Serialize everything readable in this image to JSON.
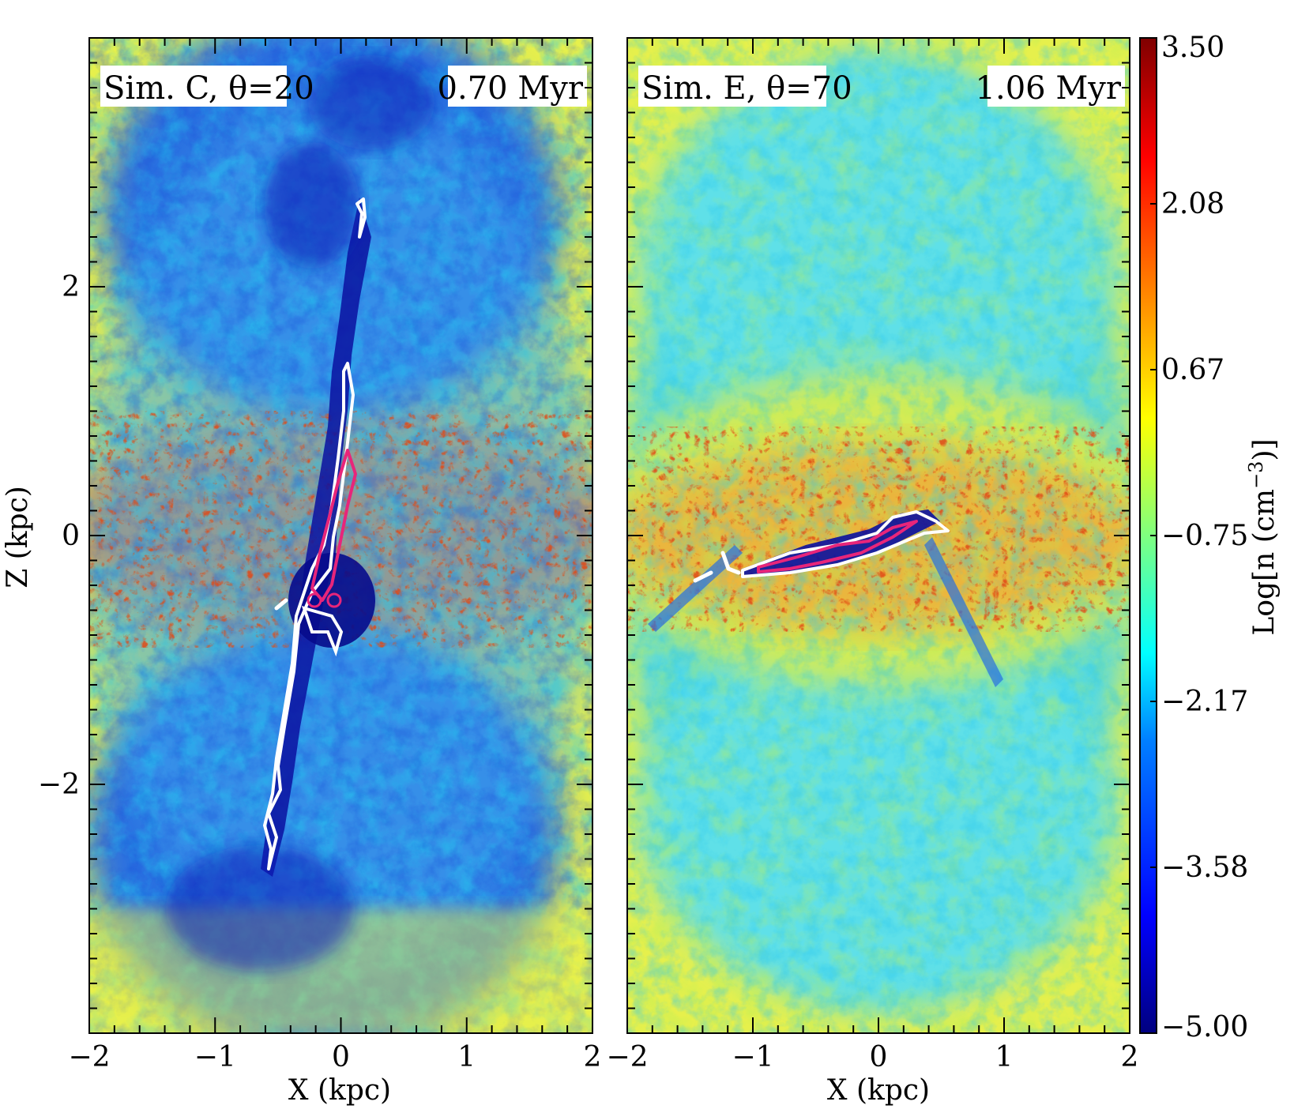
{
  "chart_data": [
    {
      "type": "heatmap",
      "panel_label": "Sim. C, θ=20",
      "time_label": "0.70 Myr",
      "xlabel": "X (kpc)",
      "ylabel": "Z (kpc)",
      "xlim": [
        -2,
        2
      ],
      "ylim": [
        -4,
        4
      ],
      "x_ticks": [
        -2,
        -1,
        0,
        1,
        2
      ],
      "x_tick_labels": [
        "−2",
        "−1",
        "0",
        "1",
        "2"
      ],
      "y_ticks": [
        2,
        0,
        -2
      ],
      "y_tick_labels": [
        "2",
        "0",
        "−2"
      ],
      "jet_angle_deg": 20,
      "jet_ends": [
        [
          0.15,
          2.7
        ],
        [
          -0.55,
          -2.7
        ]
      ]
    },
    {
      "type": "heatmap",
      "panel_label": "Sim. E, θ=70",
      "time_label": "1.06 Myr",
      "xlabel": "X (kpc)",
      "ylabel": "",
      "xlim": [
        -2,
        2
      ],
      "ylim": [
        -4,
        4
      ],
      "x_ticks": [
        -2,
        -1,
        0,
        1,
        2
      ],
      "x_tick_labels": [
        "−2",
        "−1",
        "0",
        "1",
        "2"
      ],
      "jet_angle_deg": 70,
      "jet_ends": [
        [
          -1.2,
          -0.3
        ],
        [
          0.5,
          0.1
        ]
      ]
    }
  ],
  "colorbar": {
    "label": "Log[n (cm",
    "label_sup": "−3",
    "label_end": ")]",
    "ticks": [
      "3.50",
      "2.08",
      "0.67",
      "−0.75",
      "−2.17",
      "−3.58",
      "−5.00"
    ],
    "range": [
      -5.0,
      3.5
    ],
    "colormap": [
      "#00007f",
      "#0000ff",
      "#007fff",
      "#00ffff",
      "#7fff7f",
      "#ffff00",
      "#ff7f00",
      "#ff0000",
      "#7f0000"
    ]
  },
  "colors": {
    "halo": "#e8f24a",
    "disk": "#f39a2a",
    "filament": "#e34a14",
    "lowdens_c": "#2a6fe0",
    "cyan_e": "#3fdcef",
    "cavity": "#0a10a0",
    "contour_outer": "#ffffff",
    "contour_inner": "#e8257a"
  }
}
